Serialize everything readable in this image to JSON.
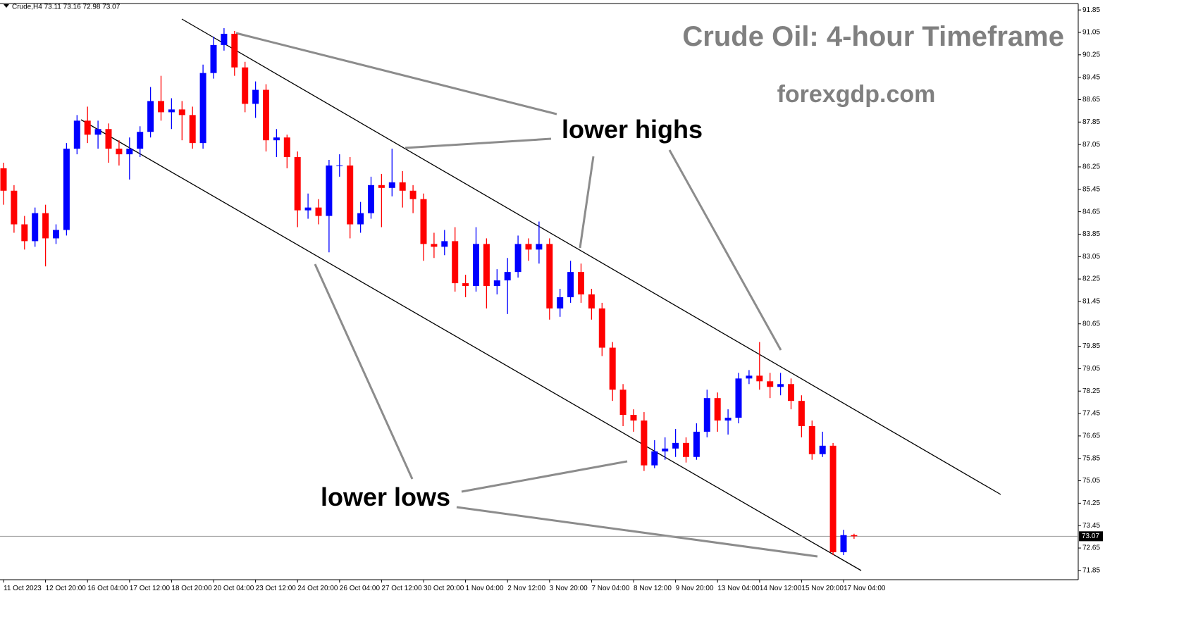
{
  "chart_data": {
    "type": "candlestick",
    "title": "Crude Oil: 4-hour Timeframe",
    "watermark": "forexgdp.com",
    "symbol_info": "Crude,H4  73.11 73.16 72.98 73.07",
    "annotations": [
      "lower highs",
      "lower lows"
    ],
    "up_color": "#0000ff",
    "down_color": "#ff0000",
    "grid": false,
    "ylim": [
      71.52,
      92.08
    ],
    "yticks": [
      91.85,
      91.05,
      90.25,
      89.45,
      88.65,
      87.85,
      87.05,
      86.25,
      85.45,
      84.65,
      83.85,
      83.05,
      82.25,
      81.45,
      80.65,
      79.85,
      79.05,
      78.25,
      77.45,
      76.65,
      75.85,
      75.05,
      74.25,
      73.45,
      72.65,
      71.85
    ],
    "current_price": 73.07,
    "categories": [
      "11 Oct 2023",
      null,
      null,
      null,
      "12 Oct 20:00",
      null,
      null,
      null,
      "16 Oct 04:00",
      null,
      null,
      null,
      "17 Oct 12:00",
      null,
      null,
      null,
      "18 Oct 20:00",
      null,
      null,
      null,
      "20 Oct 04:00",
      null,
      null,
      null,
      "23 Oct 12:00",
      null,
      null,
      null,
      "24 Oct 20:00",
      null,
      null,
      null,
      "26 Oct 04:00",
      null,
      null,
      null,
      "27 Oct 12:00",
      null,
      null,
      null,
      "30 Oct 20:00",
      null,
      null,
      null,
      "1 Nov 04:00",
      null,
      null,
      null,
      "2 Nov 12:00",
      null,
      null,
      null,
      "3 Nov 20:00",
      null,
      null,
      null,
      "7 Nov 04:00",
      null,
      null,
      null,
      "8 Nov 12:00",
      null,
      null,
      null,
      "9 Nov 20:00",
      null,
      null,
      null,
      "13 Nov 04:00",
      null,
      null,
      null,
      "14 Nov 12:00",
      null,
      null,
      null,
      "15 Nov 20:00",
      null,
      null,
      null,
      "17 Nov 04:00",
      null
    ],
    "open": [
      86.2,
      85.4,
      84.2,
      83.6,
      84.6,
      83.7,
      84.0,
      86.9,
      87.9,
      87.4,
      87.6,
      86.9,
      86.7,
      86.9,
      87.5,
      88.6,
      88.2,
      88.3,
      88.1,
      87.1,
      89.6,
      90.6,
      91.0,
      89.8,
      88.5,
      89.0,
      87.2,
      87.3,
      86.6,
      84.7,
      84.8,
      84.5,
      86.3,
      86.3,
      84.2,
      84.6,
      85.6,
      85.5,
      85.7,
      85.4,
      85.1,
      83.5,
      83.4,
      83.6,
      82.1,
      82.0,
      83.5,
      82.0,
      82.2,
      82.5,
      83.5,
      83.3,
      83.5,
      81.2,
      81.6,
      82.5,
      81.7,
      81.2,
      79.8,
      78.3,
      77.4,
      77.2,
      75.6,
      76.1,
      76.2,
      76.4,
      75.9,
      76.8,
      78.0,
      77.2,
      77.3,
      78.7,
      78.8,
      78.6,
      78.4,
      78.5,
      77.9,
      77.0,
      76.0,
      76.3,
      72.5,
      73.11
    ],
    "high": [
      86.4,
      85.6,
      84.5,
      84.8,
      84.9,
      84.2,
      87.1,
      88.1,
      88.4,
      87.9,
      87.8,
      87.2,
      87.3,
      87.7,
      89.1,
      89.5,
      88.7,
      88.6,
      88.4,
      89.9,
      90.9,
      91.2,
      91.1,
      90.0,
      89.3,
      89.2,
      87.6,
      87.4,
      86.8,
      85.3,
      85.1,
      86.5,
      86.7,
      86.6,
      85.0,
      85.9,
      86.0,
      86.9,
      86.1,
      85.6,
      85.3,
      83.9,
      84.0,
      84.1,
      82.4,
      84.1,
      83.7,
      82.6,
      83.0,
      83.8,
      83.7,
      84.3,
      83.7,
      81.9,
      82.9,
      82.8,
      81.9,
      81.4,
      80.0,
      78.5,
      77.6,
      77.5,
      76.5,
      76.6,
      76.9,
      76.6,
      77.1,
      78.3,
      78.2,
      77.6,
      78.9,
      79.0,
      80.0,
      78.9,
      78.9,
      78.7,
      78.1,
      77.2,
      76.8,
      76.4,
      73.3,
      73.16
    ],
    "low": [
      84.9,
      83.9,
      83.3,
      83.4,
      82.7,
      83.5,
      83.8,
      86.7,
      87.1,
      86.9,
      86.4,
      86.3,
      85.8,
      86.6,
      87.3,
      87.9,
      87.6,
      87.2,
      86.9,
      86.9,
      89.4,
      90.4,
      89.5,
      88.2,
      88.0,
      86.8,
      86.6,
      86.2,
      84.1,
      84.4,
      84.2,
      83.2,
      85.9,
      83.7,
      83.9,
      84.4,
      84.1,
      85.2,
      84.8,
      84.6,
      82.9,
      83.0,
      83.1,
      81.8,
      81.6,
      81.8,
      81.2,
      81.7,
      81.0,
      82.3,
      82.9,
      82.8,
      80.8,
      80.9,
      81.4,
      81.4,
      80.8,
      79.5,
      77.9,
      77.0,
      76.8,
      75.4,
      75.5,
      75.8,
      75.9,
      75.7,
      75.8,
      76.6,
      76.8,
      76.7,
      77.1,
      78.5,
      78.3,
      78.0,
      78.1,
      77.6,
      76.6,
      75.8,
      75.9,
      72.4,
      72.4,
      72.98
    ],
    "close": [
      85.4,
      84.2,
      83.6,
      84.6,
      83.7,
      84.0,
      86.9,
      87.9,
      87.4,
      87.6,
      86.9,
      86.7,
      86.9,
      87.5,
      88.6,
      88.2,
      88.3,
      88.1,
      87.1,
      89.6,
      90.6,
      91.0,
      89.8,
      88.5,
      89.0,
      87.2,
      87.3,
      86.6,
      84.7,
      84.8,
      84.5,
      86.3,
      86.3,
      84.2,
      84.6,
      85.6,
      85.5,
      85.7,
      85.4,
      85.1,
      83.5,
      83.4,
      83.6,
      82.1,
      82.0,
      83.5,
      82.0,
      82.2,
      82.5,
      83.5,
      83.3,
      83.5,
      81.2,
      81.6,
      82.5,
      81.7,
      81.2,
      79.8,
      78.3,
      77.4,
      77.2,
      75.6,
      76.1,
      76.2,
      76.4,
      75.9,
      76.8,
      78.0,
      77.2,
      77.3,
      78.7,
      78.8,
      78.6,
      78.4,
      78.5,
      77.9,
      77.0,
      76.0,
      76.3,
      72.5,
      73.11,
      73.07
    ]
  }
}
